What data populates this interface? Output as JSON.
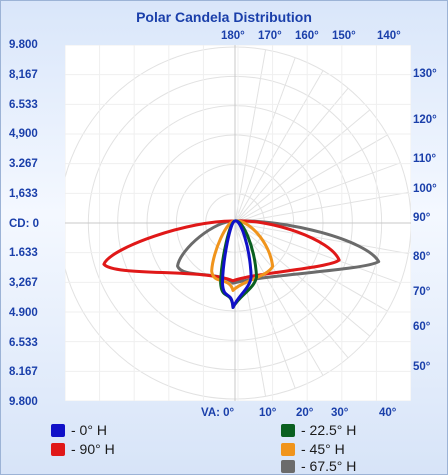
{
  "chart_data": {
    "type": "polar",
    "title": "Polar Candela Distribution",
    "cd_ticks": [
      "9.800",
      "8,167",
      "6.533",
      "4,900",
      "3.267",
      "1,633",
      "CD: 0",
      "1.633",
      "3,267",
      "4.900",
      "6.533",
      "8.167",
      "9.800"
    ],
    "top_angle_labels": [
      "180°",
      "170°",
      "160°",
      "150°",
      "140°"
    ],
    "right_angle_labels": [
      "130°",
      "120°",
      "110°",
      "100°",
      "90°",
      "80°",
      "70°",
      "60°",
      "50°"
    ],
    "bottom_angle_labels": [
      "VA: 0°",
      "10°",
      "20°",
      "30°",
      "40°"
    ],
    "series": [
      {
        "name": "- 0° H",
        "color": "#1010c8",
        "left_extent": 0.7,
        "right_extent": 0.9,
        "depth": 3.4
      },
      {
        "name": "- 90° H",
        "color": "#e01818",
        "left_extent": 7.3,
        "right_extent": 5.8,
        "depth": 2.3
      },
      {
        "name": "- 22.5° H",
        "color": "#0a6020",
        "left_extent": 0.8,
        "right_extent": 1.2,
        "depth": 3.4
      },
      {
        "name": "- 45° H",
        "color": "#f0941c",
        "left_extent": 1.3,
        "right_extent": 2.1,
        "depth": 2.7
      },
      {
        "name": "- 67.5° H",
        "color": "#6b6b6b",
        "left_extent": 3.2,
        "right_extent": 8.0,
        "depth": 2.4
      }
    ]
  }
}
